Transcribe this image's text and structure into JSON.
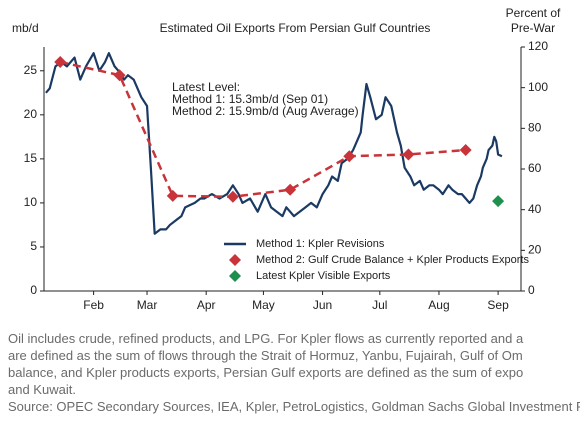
{
  "chart_data": {
    "type": "line",
    "title": "Estimated Oil Exports From Persian Gulf Countries",
    "y_label": "mb/d",
    "y2_label": [
      "Percent of",
      "Pre-War"
    ],
    "annotation": [
      "Latest Level:",
      "Method 1: 15.3mb/d (Sep 01)",
      "Method 2: 15.9mb/d (Aug Average)"
    ],
    "xlim": [
      6,
      256
    ],
    "xticks": [
      {
        "value": 32,
        "label": "Feb"
      },
      {
        "value": 60,
        "label": "Mar"
      },
      {
        "value": 91,
        "label": "Apr"
      },
      {
        "value": 121,
        "label": "May"
      },
      {
        "value": 152,
        "label": "Jun"
      },
      {
        "value": 182,
        "label": "Jul"
      },
      {
        "value": 213,
        "label": "Aug"
      },
      {
        "value": 244,
        "label": "Sep"
      }
    ],
    "ylim": [
      0,
      27.7
    ],
    "yticks": [
      0,
      5,
      10,
      15,
      20,
      25
    ],
    "y2lim": [
      0,
      120
    ],
    "y2ticks": [
      0,
      20,
      40,
      60,
      80,
      100,
      120
    ],
    "legend": "lower center",
    "series": [
      {
        "name": "Method 1: Kpler Revisions",
        "style": "line",
        "color": "#1b3a63",
        "x": [
          7,
          9,
          12,
          15,
          18,
          22,
          25,
          28,
          32,
          35,
          38,
          40,
          43,
          45,
          48,
          50,
          53,
          57,
          60,
          62,
          64,
          67,
          70,
          72,
          75,
          78,
          80,
          83,
          85,
          88,
          90,
          94,
          98,
          102,
          105,
          108,
          110,
          114,
          118,
          122,
          125,
          128,
          131,
          133,
          137,
          140,
          143,
          146,
          149,
          152,
          155,
          157,
          160,
          162,
          165,
          168,
          170,
          172,
          173,
          175,
          177,
          180,
          183,
          185,
          188,
          191,
          193,
          195,
          198,
          200,
          203,
          205,
          208,
          210,
          213,
          215,
          218,
          220,
          223,
          225,
          227,
          229,
          231,
          233,
          235,
          236,
          238,
          239,
          241,
          242,
          243,
          244,
          246
        ],
        "values": [
          22.5,
          23,
          25.5,
          26,
          25.5,
          26.5,
          24,
          25.5,
          27,
          25,
          26,
          27,
          25.5,
          25,
          24,
          24.5,
          24,
          22,
          21,
          14,
          6.5,
          7,
          7,
          7.5,
          8,
          8.5,
          9.5,
          9.8,
          10,
          10.5,
          10.5,
          11,
          10.5,
          11,
          12,
          11,
          10,
          10.5,
          9,
          11,
          9.5,
          9,
          8.5,
          9.5,
          8.5,
          9,
          9.5,
          10,
          9.5,
          11,
          12,
          13,
          12.5,
          14.5,
          15,
          16,
          17,
          18,
          20,
          23.5,
          22,
          19.5,
          20,
          22,
          21,
          18,
          16.5,
          14,
          13,
          12,
          12.5,
          11.5,
          12,
          12,
          11.5,
          11,
          12,
          11.5,
          11,
          11,
          10.5,
          10,
          10.5,
          12,
          13,
          14,
          15,
          16,
          16.5,
          17.5,
          17,
          15.5,
          15.3
        ]
      },
      {
        "name": "Method 2: Gulf Crude Balance + Kpler Products Exports",
        "style": "dashed-diamond",
        "color": "#c8343a",
        "x": [
          14.5,
          45.6,
          73.5,
          105,
          135,
          166,
          197,
          227
        ],
        "values": [
          26,
          24.5,
          10.8,
          10.7,
          11.5,
          15.3,
          15.5,
          16
        ]
      },
      {
        "name": "Latest Kpler Visible Exports",
        "style": "diamond",
        "color": "#1f8f4e",
        "x": [
          244
        ],
        "values": [
          10.2
        ]
      }
    ],
    "notes": [
      "Oil includes crude, refined products, and LPG. For Kpler flows as currently reported and a",
      "are defined as the sum of flows through the Strait of Hormuz, Yanbu, Fujairah, Gulf of Om",
      "balance, and Kpler products exports, Persian Gulf exports are defined as the sum of expo",
      "and Kuwait.",
      "Source: OPEC Secondary Sources, IEA, Kpler, PetroLogistics, Goldman Sachs Global Investment R"
    ]
  }
}
